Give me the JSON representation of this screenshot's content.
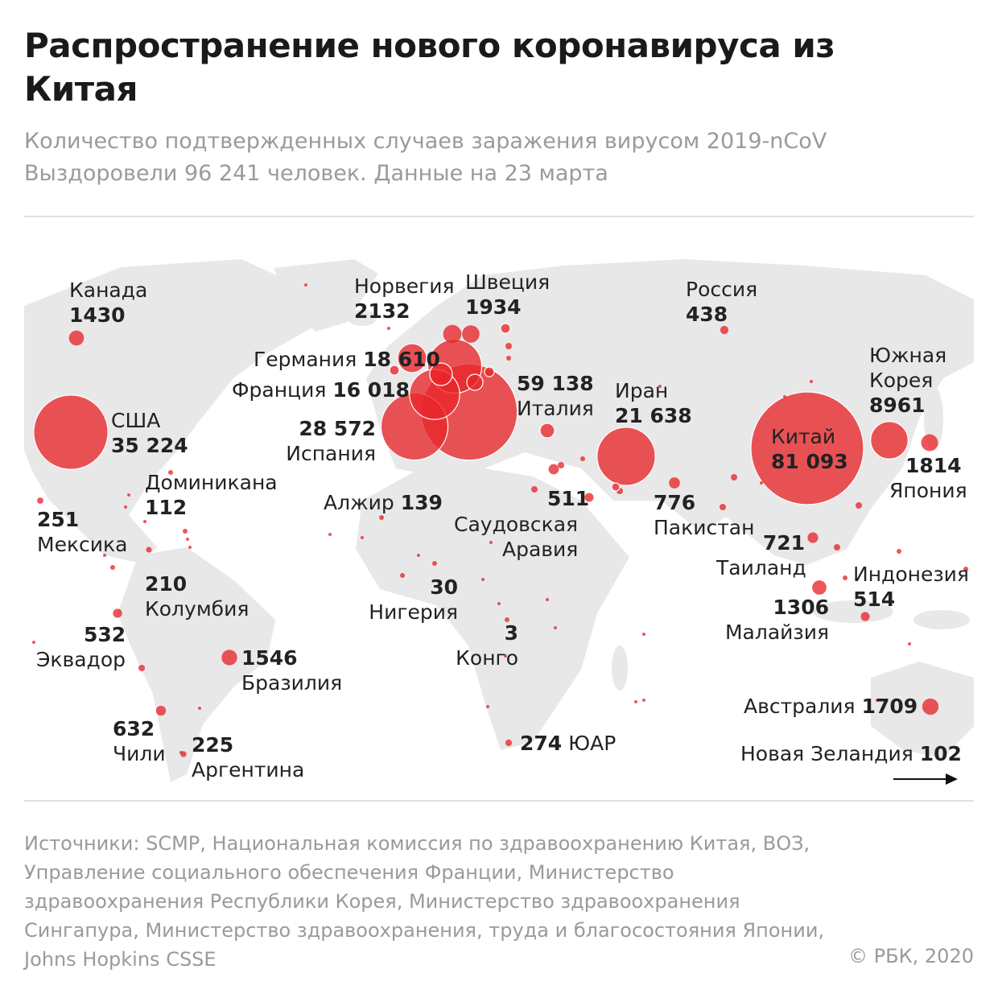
{
  "header": {
    "title": "Распространение нового коронавируса из Китая",
    "subtitle_line1": "Количество подтвержденных случаев заражения вирусом 2019-nCoV",
    "subtitle_line2": "Выздоровели 96 241 человек. Данные на 23 марта"
  },
  "colors": {
    "bubble": "#e8262a",
    "land": "#e8e8e8",
    "text": "#222222",
    "muted": "#9a9a9a"
  },
  "countries": [
    {
      "name": "Канада",
      "value": "1430",
      "cases": 1430
    },
    {
      "name": "США",
      "value": "35 224",
      "cases": 35224
    },
    {
      "name": "Мексика",
      "value": "251",
      "cases": 251
    },
    {
      "name": "Доминикана",
      "value": "112",
      "cases": 112
    },
    {
      "name": "Колумбия",
      "value": "210",
      "cases": 210
    },
    {
      "name": "Эквадор",
      "value": "532",
      "cases": 532
    },
    {
      "name": "Бразилия",
      "value": "1546",
      "cases": 1546
    },
    {
      "name": "Чили",
      "value": "632",
      "cases": 632
    },
    {
      "name": "Аргентина",
      "value": "225",
      "cases": 225
    },
    {
      "name": "Норвегия",
      "value": "2132",
      "cases": 2132
    },
    {
      "name": "Швеция",
      "value": "1934",
      "cases": 1934
    },
    {
      "name": "Германия",
      "value": "18 610",
      "cases": 18610
    },
    {
      "name": "Франция",
      "value": "16 018",
      "cases": 16018
    },
    {
      "name": "Испания",
      "value": "28 572",
      "cases": 28572
    },
    {
      "name": "Италия",
      "value": "59 138",
      "cases": 59138
    },
    {
      "name": "Иран",
      "value": "21 638",
      "cases": 21638
    },
    {
      "name": "Россия",
      "value": "438",
      "cases": 438
    },
    {
      "name": "Китай",
      "value": "81 093",
      "cases": 81093
    },
    {
      "name": "Южная Корея",
      "name_line1": "Южная",
      "name_line2": "Корея",
      "value": "8961",
      "cases": 8961
    },
    {
      "name": "Япония",
      "value": "1814",
      "cases": 1814
    },
    {
      "name": "Пакистан",
      "value": "776",
      "cases": 776
    },
    {
      "name": "Алжир",
      "value": "139",
      "cases": 139
    },
    {
      "name": "Саудовская Аравия",
      "name_line1": "Саудовская",
      "name_line2": "Аравия",
      "value": "511",
      "cases": 511
    },
    {
      "name": "Нигерия",
      "value": "30",
      "cases": 30
    },
    {
      "name": "Конго",
      "value": "3",
      "cases": 3
    },
    {
      "name": "ЮАР",
      "value": "274",
      "cases": 274
    },
    {
      "name": "Таиланд",
      "value": "721",
      "cases": 721
    },
    {
      "name": "Малайзия",
      "value": "1306",
      "cases": 1306
    },
    {
      "name": "Индонезия",
      "value": "514",
      "cases": 514
    },
    {
      "name": "Австралия",
      "value": "1709",
      "cases": 1709
    },
    {
      "name": "Новая Зеландия",
      "value": "102",
      "cases": 102
    }
  ],
  "footer": {
    "sources": "Источники: SCMP, Национальная комиссия по здравоохранению Китая, ВОЗ, Управление социального обеспечения Франции, Министерство здравоохранения Республики Корея, Министерство здравоохранения Сингапура, Министерство здравоохранения, труда и благосостояния Японии, Johns Hopkins CSSE",
    "copyright": "© РБК, 2020"
  },
  "icons": {
    "arrow": "arrow-right-icon"
  }
}
